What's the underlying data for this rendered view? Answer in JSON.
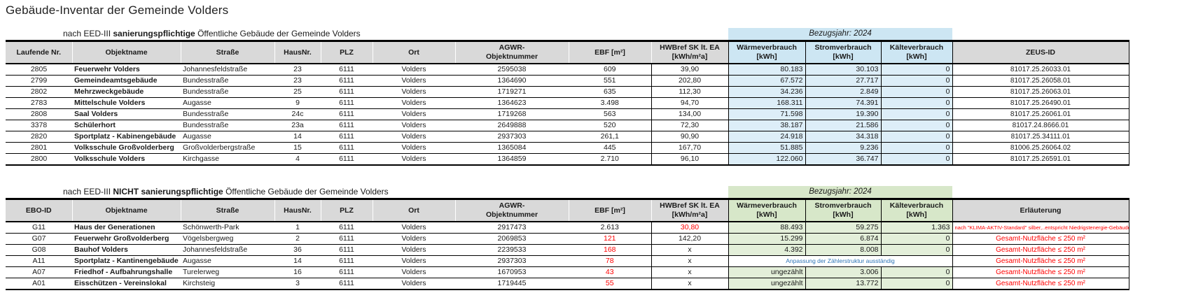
{
  "title": "Gebäude-Inventar der Gemeinde Volders",
  "colors": {
    "header_gray": "#d9d9d9",
    "accent_blue": "#cde6f3",
    "accent_blue_light": "#ddeef8",
    "accent_green": "#d7e7c9",
    "accent_green_light": "#e3efd9",
    "warning_red": "#ff0000",
    "note_blue": "#2e75b6"
  },
  "sections": [
    {
      "name": "sanierungspflichtig",
      "label": {
        "prefix": "nach EED-III ",
        "bold": "sanierungspflichtige",
        "suffix": " Öffentliche Gebäude der Gemeinde Volders"
      },
      "bezugsjahr": "Bezugsjahr: 2024",
      "accent": "blue",
      "headers": [
        [
          "Laufende Nr."
        ],
        [
          "Objektname"
        ],
        [
          "Straße"
        ],
        [
          "HausNr."
        ],
        [
          "PLZ"
        ],
        [
          "Ort"
        ],
        [
          "AGWR-",
          "Objektnummer"
        ],
        [
          "EBF [m²]"
        ],
        [
          "HWBref SK lt. EA",
          "[kWh/m²a]"
        ],
        [
          "Wärmeverbrauch",
          "[kWh]"
        ],
        [
          "Stromverbrauch",
          "[kWh]"
        ],
        [
          "Kälteverbrauch",
          "[kWh]"
        ],
        [
          "ZEUS-ID"
        ]
      ],
      "rows": [
        {
          "id": "2805",
          "name": "Feuerwehr Volders",
          "street": "Johannesfeldstraße",
          "nr": "23",
          "plz": "6111",
          "ort": "Volders",
          "agwr": "2595038",
          "ebf": "609",
          "hwb": "39,90",
          "heat": "80.183",
          "power": "30.103",
          "cold": "0",
          "last": "81017.25.26033.01"
        },
        {
          "id": "2799",
          "name": "Gemeindeamtsgebäude",
          "street": "Bundesstraße",
          "nr": "23",
          "plz": "6111",
          "ort": "Volders",
          "agwr": "1364690",
          "ebf": "551",
          "hwb": "202,80",
          "heat": "67.572",
          "power": "27.717",
          "cold": "0",
          "last": "81017.25.26058.01"
        },
        {
          "id": "2802",
          "name": "Mehrzweckgebäude",
          "street": "Bundesstraße",
          "nr": "25",
          "plz": "6111",
          "ort": "Volders",
          "agwr": "1719271",
          "ebf": "635",
          "hwb": "112,30",
          "heat": "34.236",
          "power": "2.849",
          "cold": "0",
          "last": "81017.25.26063.01"
        },
        {
          "id": "2783",
          "name": "Mittelschule Volders",
          "street": "Augasse",
          "nr": "9",
          "plz": "6111",
          "ort": "Volders",
          "agwr": "1364623",
          "ebf": "3.498",
          "hwb": "94,70",
          "heat": "168.311",
          "power": "74.391",
          "cold": "0",
          "last": "81017.25.26490.01"
        },
        {
          "id": "2808",
          "name": "Saal Volders",
          "street": "Bundesstraße",
          "nr": "24c",
          "plz": "6111",
          "ort": "Volders",
          "agwr": "1719268",
          "ebf": "563",
          "hwb": "134,00",
          "heat": "71.598",
          "power": "19.390",
          "cold": "0",
          "last": "81017.25.26061.01"
        },
        {
          "id": "3378",
          "name": "Schülerhort",
          "street": "Bundesstraße",
          "nr": "23a",
          "plz": "6111",
          "ort": "Volders",
          "agwr": "2649888",
          "ebf": "520",
          "hwb": "72,30",
          "heat": "38.187",
          "power": "21.586",
          "cold": "0",
          "last": "81017.24.8666.01"
        },
        {
          "id": "2820",
          "name": "Sportplatz - Kabinengebäude",
          "street": "Augasse",
          "nr": "14",
          "plz": "6111",
          "ort": "Volders",
          "agwr": "2937303",
          "ebf": "261,1",
          "hwb": "90,90",
          "heat": "24.918",
          "power": "34.318",
          "cold": "0",
          "last": "81017.25.34111.01"
        },
        {
          "id": "2801",
          "name": "Volksschule Großvolderberg",
          "street": "Großvolderbergstraße",
          "nr": "15",
          "plz": "6111",
          "ort": "Volders",
          "agwr": "1365084",
          "ebf": "445",
          "hwb": "167,70",
          "heat": "51.885",
          "power": "9.236",
          "cold": "0",
          "last": "81006.25.26064.02"
        },
        {
          "id": "2800",
          "name": "Volksschule Volders",
          "street": "Kirchgasse",
          "nr": "4",
          "plz": "6111",
          "ort": "Volders",
          "agwr": "1364859",
          "ebf": "2.710",
          "hwb": "96,10",
          "heat": "122.060",
          "power": "36.747",
          "cold": "0",
          "last": "81017.25.26591.01"
        }
      ]
    },
    {
      "name": "nicht-sanierungspflichtig",
      "label": {
        "prefix": "nach EED-III ",
        "bold": "NICHT sanierungspflichtige",
        "suffix": " Öffentliche Gebäude der Gemeinde Volders"
      },
      "bezugsjahr": "Bezugsjahr: 2024",
      "accent": "green",
      "headers": [
        [
          "EBO-ID"
        ],
        [
          "Objektname"
        ],
        [
          "Straße"
        ],
        [
          "HausNr."
        ],
        [
          "PLZ"
        ],
        [
          "Ort"
        ],
        [
          "AGWR-",
          "Objektnummer"
        ],
        [
          "EBF [m²]"
        ],
        [
          "HWBref SK lt. EA",
          "[kWh/m²a]"
        ],
        [
          "Wärmeverbrauch",
          "[kWh]"
        ],
        [
          "Stromverbrauch",
          "[kWh]"
        ],
        [
          "Kälteverbrauch",
          "[kWh]"
        ],
        [
          "Erläuterung"
        ]
      ],
      "rows": [
        {
          "id": "G11",
          "name": "Haus der Generationen",
          "street": "Schönwerth-Park",
          "nr": "1",
          "plz": "6111",
          "ort": "Volders",
          "agwr": "2917473",
          "ebf": "2.613",
          "hwb": "30,80",
          "hwb_red": true,
          "heat": "88.493",
          "power": "59.275",
          "cold": "1.363",
          "last": "nach \"KLIMA-AKTIV-Standard\" silber,..entspricht Niedrigstenergie-Gebäude",
          "last_red": true,
          "last_small": true
        },
        {
          "id": "G07",
          "name": "Feuerwehr Großvolderberg",
          "street": "Vögelsbergweg",
          "nr": "2",
          "plz": "6111",
          "ort": "Volders",
          "agwr": "2069853",
          "ebf": "121",
          "ebf_red": true,
          "hwb": "142,20",
          "heat": "15.299",
          "power": "6.874",
          "cold": "0",
          "last": "Gesamt-Nutzfläche ≤ 250 m²",
          "last_red": true
        },
        {
          "id": "G08",
          "name": "Bauhof Volders",
          "street": "Johannesfeldstraße",
          "nr": "36",
          "plz": "6111",
          "ort": "Volders",
          "agwr": "2239533",
          "ebf": "168",
          "ebf_red": true,
          "hwb": "x",
          "heat": "4.392",
          "power": "8.008",
          "cold": "0",
          "last": "Gesamt-Nutzfläche ≤ 250 m²",
          "last_red": true
        },
        {
          "id": "A11",
          "name": "Sportplatz - Kantinengebäude",
          "street": "Augasse",
          "nr": "14",
          "plz": "6111",
          "ort": "Volders",
          "agwr": "2937303",
          "ebf": "78",
          "ebf_red": true,
          "hwb": "x",
          "meter_note": "Anpassung der Zählerstruktur ausständig",
          "last": "Gesamt-Nutzfläche ≤ 250 m²",
          "last_red": true
        },
        {
          "id": "A07",
          "name": "Friedhof - Aufbahrungshalle",
          "street": "Turelerweg",
          "nr": "16",
          "plz": "6111",
          "ort": "Volders",
          "agwr": "1670953",
          "ebf": "43",
          "ebf_red": true,
          "hwb": "x",
          "heat": "ungezählt",
          "power": "3.006",
          "cold": "0",
          "last": "Gesamt-Nutzfläche ≤ 250 m²",
          "last_red": true
        },
        {
          "id": "A01",
          "name": "Eisschützen - Vereinslokal",
          "street": "Kirchsteig",
          "nr": "3",
          "plz": "6111",
          "ort": "Volders",
          "agwr": "1719445",
          "ebf": "55",
          "ebf_red": true,
          "hwb": "x",
          "heat": "ungezählt",
          "power": "13.772",
          "cold": "0",
          "last": "Gesamt-Nutzfläche ≤ 250 m²",
          "last_red": true
        }
      ]
    }
  ]
}
